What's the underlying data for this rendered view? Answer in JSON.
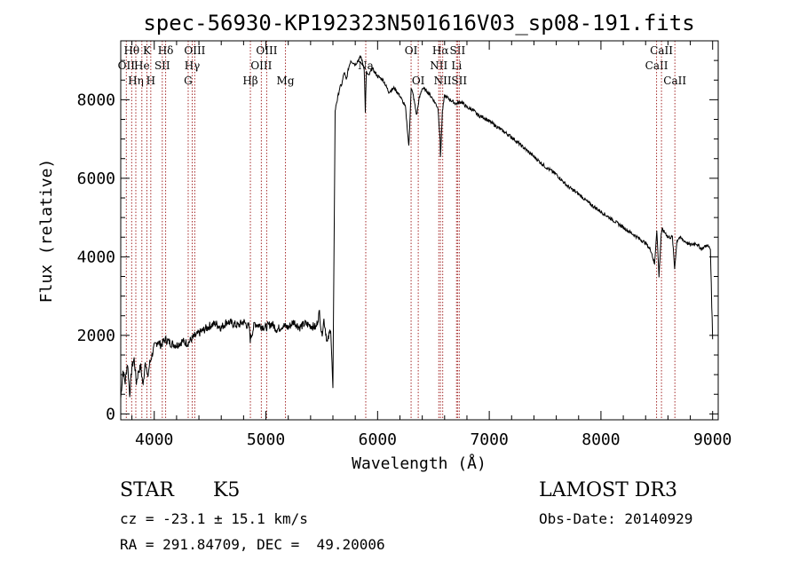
{
  "chart_data": {
    "type": "line",
    "title": "spec-56930-KP192323N501616V03_sp08-191.fits",
    "xlabel": "Wavelength (Å)",
    "ylabel": "Flux (relative)",
    "xlim": [
      3700,
      9050
    ],
    "ylim": [
      -150,
      9500
    ],
    "xticks": [
      4000,
      5000,
      6000,
      7000,
      8000,
      9000
    ],
    "yticks": [
      0,
      2000,
      4000,
      6000,
      8000
    ],
    "grid": false,
    "series": [
      {
        "name": "flux",
        "x": [
          3700,
          3720,
          3740,
          3760,
          3780,
          3800,
          3820,
          3840,
          3860,
          3880,
          3900,
          3920,
          3940,
          3960,
          3980,
          4000,
          4030,
          4060,
          4100,
          4150,
          4200,
          4250,
          4300,
          4350,
          4400,
          4450,
          4500,
          4550,
          4600,
          4650,
          4700,
          4750,
          4800,
          4850,
          4860,
          4900,
          4950,
          5000,
          5050,
          5100,
          5150,
          5200,
          5250,
          5300,
          5350,
          5400,
          5450,
          5480,
          5500,
          5520,
          5550,
          5580,
          5600,
          5620,
          5630,
          5640,
          5660,
          5680,
          5700,
          5720,
          5740,
          5760,
          5800,
          5850,
          5880,
          5890,
          5900,
          5920,
          5950,
          6000,
          6050,
          6100,
          6150,
          6200,
          6250,
          6280,
          6300,
          6320,
          6350,
          6370,
          6400,
          6450,
          6500,
          6540,
          6560,
          6563,
          6580,
          6600,
          6650,
          6700,
          6750,
          6800,
          6850,
          6900,
          6950,
          7000,
          7100,
          7200,
          7300,
          7400,
          7500,
          7600,
          7700,
          7800,
          7900,
          8000,
          8100,
          8200,
          8300,
          8400,
          8450,
          8480,
          8500,
          8520,
          8540,
          8550,
          8560,
          8580,
          8600,
          8640,
          8660,
          8680,
          8700,
          8750,
          8800,
          8850,
          8900,
          8950,
          8980,
          9000
        ],
        "values": [
          400,
          1100,
          800,
          1300,
          500,
          1200,
          1400,
          800,
          1100,
          1200,
          700,
          1400,
          900,
          1300,
          1500,
          1700,
          1850,
          1750,
          1900,
          1800,
          1750,
          1850,
          1800,
          1950,
          2050,
          2150,
          2250,
          2300,
          2200,
          2350,
          2300,
          2250,
          2350,
          2200,
          1900,
          2300,
          2250,
          2200,
          2300,
          2150,
          2250,
          2200,
          2350,
          2200,
          2300,
          2250,
          2200,
          2600,
          2000,
          2400,
          1800,
          2200,
          600,
          7700,
          7900,
          8000,
          8300,
          8400,
          8700,
          8500,
          8800,
          9000,
          8900,
          9100,
          8800,
          7700,
          8700,
          8600,
          8800,
          8600,
          8500,
          8200,
          8300,
          8100,
          7800,
          6800,
          8300,
          8100,
          7600,
          8000,
          8300,
          8200,
          8000,
          7800,
          7000,
          6500,
          7700,
          8100,
          8000,
          7900,
          7950,
          7800,
          7750,
          7600,
          7550,
          7450,
          7250,
          7050,
          6800,
          6550,
          6300,
          6100,
          5800,
          5600,
          5350,
          5150,
          4950,
          4750,
          4550,
          4350,
          4150,
          3800,
          4700,
          3500,
          4600,
          4700,
          4650,
          4600,
          4500,
          4500,
          3700,
          4400,
          4500,
          4400,
          4300,
          4350,
          4200,
          4300,
          4200,
          1900
        ]
      }
    ],
    "line_colors": {
      "data": "#000000",
      "lines": "#a52a2a"
    },
    "line_markers": [
      {
        "w": 3750,
        "label": "OII",
        "row": 2
      },
      {
        "w": 3798,
        "label": "Hθ",
        "row": 1
      },
      {
        "w": 3835,
        "label": "Hη",
        "row": 3
      },
      {
        "w": 3889,
        "label": "He",
        "row": 2
      },
      {
        "w": 3934,
        "label": "K",
        "row": 1
      },
      {
        "w": 3969,
        "label": "H",
        "row": 3
      },
      {
        "w": 4072,
        "label": "SII",
        "row": 2
      },
      {
        "w": 4102,
        "label": "Hδ",
        "row": 1
      },
      {
        "w": 4304,
        "label": "G",
        "row": 3
      },
      {
        "w": 4340,
        "label": "Hγ",
        "row": 2
      },
      {
        "w": 4363,
        "label": "OIII",
        "row": 1
      },
      {
        "w": 4861,
        "label": "Hβ",
        "row": 3
      },
      {
        "w": 4959,
        "label": "OIII",
        "row": 2
      },
      {
        "w": 5007,
        "label": "OIII",
        "row": 1
      },
      {
        "w": 5175,
        "label": "Mg",
        "row": 3
      },
      {
        "w": 5894,
        "label": "Na",
        "row": 2
      },
      {
        "w": 6300,
        "label": "OI",
        "row": 1
      },
      {
        "w": 6364,
        "label": "OI",
        "row": 3
      },
      {
        "w": 6548,
        "label": "NII",
        "row": 2
      },
      {
        "w": 6563,
        "label": "Hα",
        "row": 1
      },
      {
        "w": 6583,
        "label": "NII",
        "row": 3
      },
      {
        "w": 6707,
        "label": "Li",
        "row": 2
      },
      {
        "w": 6716,
        "label": "SII",
        "row": 1
      },
      {
        "w": 6731,
        "label": "SII",
        "row": 3
      },
      {
        "w": 8498,
        "label": "CaII",
        "row": 2
      },
      {
        "w": 8542,
        "label": "CaII",
        "row": 1
      },
      {
        "w": 8662,
        "label": "CaII",
        "row": 3
      }
    ]
  },
  "info": {
    "class_label": "STAR",
    "subclass": "K5",
    "survey": "LAMOST DR3",
    "cz": "cz = -23.1 ± 15.1 km/s",
    "obs_date": "Obs-Date: 20140929",
    "coords": "RA = 291.84709, DEC =  49.20006"
  }
}
